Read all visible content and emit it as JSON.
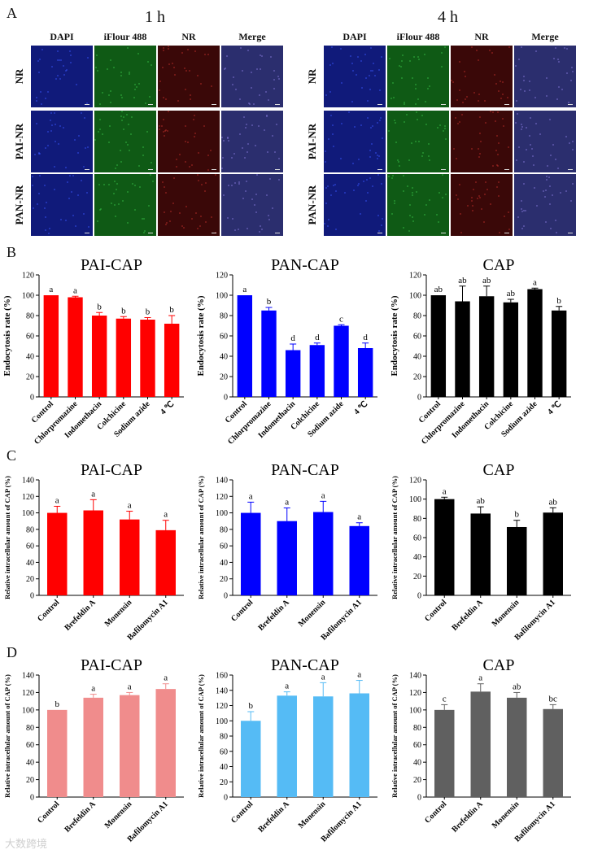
{
  "panel_a": {
    "letter": "A",
    "groups": [
      {
        "time": "1 h",
        "columns": [
          "DAPI",
          "iFlour 488",
          "NR",
          "Merge"
        ],
        "rows": [
          "NR",
          "PAI-NR",
          "PAN-NR"
        ]
      },
      {
        "time": "4 h",
        "columns": [
          "DAPI",
          "iFlour 488",
          "NR",
          "Merge"
        ],
        "rows": [
          "NR",
          "PAI-NR",
          "PAN-NR"
        ]
      }
    ],
    "channel_colors": {
      "DAPI": "#101a7a",
      "iFlour 488": "#0f5a15",
      "NR": "#3a0808",
      "Merge": "#2b2e6e"
    }
  },
  "panel_letters": {
    "b": "B",
    "c": "C",
    "d": "D"
  },
  "chart_data": [
    {
      "panel": "B",
      "type": "bar",
      "title": "PAI-CAP",
      "ylabel": "Endocytosis rate (%)",
      "ylim": [
        0,
        120
      ],
      "yticks": [
        0,
        20,
        40,
        60,
        80,
        100,
        120
      ],
      "categories": [
        "Control",
        "Chlorpromazine",
        "Indomethacin",
        "Colchicine",
        "Sodium azide",
        "4 ℃"
      ],
      "values": [
        100,
        98,
        80,
        77,
        76,
        72
      ],
      "errors": [
        0,
        1,
        3,
        2,
        2,
        8
      ],
      "labels": [
        "a",
        "a",
        "b",
        "b",
        "b",
        "b"
      ],
      "color": "#ff0000"
    },
    {
      "panel": "B",
      "type": "bar",
      "title": "PAN-CAP",
      "ylabel": "Endocytosis rate (%)",
      "ylim": [
        0,
        120
      ],
      "yticks": [
        0,
        20,
        40,
        60,
        80,
        100,
        120
      ],
      "categories": [
        "Control",
        "Chlorpromazine",
        "Indomethacin",
        "Colchicine",
        "Sodium azide",
        "4 ℃"
      ],
      "values": [
        100,
        85,
        46,
        51,
        70,
        48
      ],
      "errors": [
        0,
        3,
        6,
        2,
        1,
        5
      ],
      "labels": [
        "a",
        "b",
        "d",
        "d",
        "c",
        "d"
      ],
      "color": "#0000ff"
    },
    {
      "panel": "B",
      "type": "bar",
      "title": "CAP",
      "ylabel": "Endocytosis rate (%)",
      "ylim": [
        0,
        120
      ],
      "yticks": [
        0,
        20,
        40,
        60,
        80,
        100,
        120
      ],
      "categories": [
        "Control",
        "Chlorpromazine",
        "Indomethacin",
        "Colchicine",
        "Sodium azide",
        "4 ℃"
      ],
      "values": [
        100,
        94,
        99,
        93,
        106,
        85
      ],
      "errors": [
        0,
        15,
        10,
        3,
        1,
        4
      ],
      "labels": [
        "ab",
        "ab",
        "ab",
        "ab",
        "a",
        "b"
      ],
      "color": "#000000"
    },
    {
      "panel": "C",
      "type": "bar",
      "title": "PAI-CAP",
      "ylabel": "Relative intracellular amount of CAP (%)",
      "ylim": [
        0,
        140
      ],
      "yticks": [
        0,
        20,
        40,
        60,
        80,
        100,
        120,
        140
      ],
      "categories": [
        "Control",
        "Brefeldin A",
        "Monensin",
        "Bafilomycin A1"
      ],
      "values": [
        100,
        103,
        92,
        79
      ],
      "errors": [
        8,
        13,
        10,
        12
      ],
      "labels": [
        "a",
        "a",
        "a",
        "a"
      ],
      "color": "#ff0000"
    },
    {
      "panel": "C",
      "type": "bar",
      "title": "PAN-CAP",
      "ylabel": "Relative intracellular amount of CAP (%)",
      "ylim": [
        0,
        140
      ],
      "yticks": [
        0,
        20,
        40,
        60,
        80,
        100,
        120,
        140
      ],
      "categories": [
        "Control",
        "Brefeldin A",
        "Monensin",
        "Bafilomycin A1"
      ],
      "values": [
        100,
        90,
        101,
        84
      ],
      "errors": [
        13,
        16,
        13,
        4
      ],
      "labels": [
        "a",
        "a",
        "a",
        "a"
      ],
      "color": "#0000ff"
    },
    {
      "panel": "C",
      "type": "bar",
      "title": "CAP",
      "ylabel": "Relative intracellular amount of CAP (%)",
      "ylim": [
        0,
        120
      ],
      "yticks": [
        0,
        20,
        40,
        60,
        80,
        100,
        120
      ],
      "categories": [
        "Control",
        "Brefeldin A",
        "Monensin",
        "Bafilomycin A1"
      ],
      "values": [
        100,
        85,
        71,
        86
      ],
      "errors": [
        2,
        7,
        7,
        5
      ],
      "labels": [
        "a",
        "ab",
        "b",
        "ab"
      ],
      "color": "#000000"
    },
    {
      "panel": "D",
      "type": "bar",
      "title": "PAI-CAP",
      "ylabel": "Relative intracellular amount of CAP (%)",
      "ylim": [
        0,
        140
      ],
      "yticks": [
        0,
        20,
        40,
        60,
        80,
        100,
        120,
        140
      ],
      "categories": [
        "Control",
        "Brefeldin A",
        "Monensin",
        "Bafilomycin A1"
      ],
      "values": [
        100,
        114,
        117,
        124
      ],
      "errors": [
        0,
        4,
        3,
        6
      ],
      "labels": [
        "b",
        "a",
        "a",
        "a"
      ],
      "color": "#f08c8c"
    },
    {
      "panel": "D",
      "type": "bar",
      "title": "PAN-CAP",
      "ylabel": "Relative intracellular amount of CAP (%)",
      "ylim": [
        0,
        160
      ],
      "yticks": [
        0,
        20,
        40,
        60,
        80,
        100,
        120,
        140,
        160
      ],
      "categories": [
        "Control",
        "Brefeldin A",
        "Monensin",
        "Bafilomycin A1"
      ],
      "values": [
        100,
        133,
        132,
        136
      ],
      "errors": [
        12,
        5,
        18,
        17
      ],
      "labels": [
        "b",
        "a",
        "a",
        "a"
      ],
      "color": "#55bbf5"
    },
    {
      "panel": "D",
      "type": "bar",
      "title": "CAP",
      "ylabel": "Relative intracellular amount of CAP (%)",
      "ylim": [
        0,
        140
      ],
      "yticks": [
        0,
        20,
        40,
        60,
        80,
        100,
        120,
        140
      ],
      "categories": [
        "Control",
        "Brefeldin A",
        "Monensin",
        "Bafilomycin A1"
      ],
      "values": [
        100,
        121,
        114,
        101
      ],
      "errors": [
        6,
        9,
        6,
        5
      ],
      "labels": [
        "c",
        "a",
        "ab",
        "bc"
      ],
      "color": "#606060"
    }
  ],
  "watermark": "大数跨境"
}
